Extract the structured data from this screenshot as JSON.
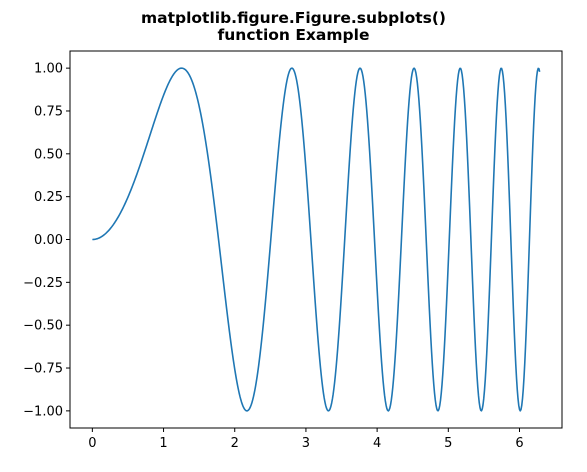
{
  "chart_data": {
    "type": "line",
    "title": [
      "matplotlib.figure.Figure.subplots()",
      "function Example"
    ],
    "xlabel": "",
    "ylabel": "",
    "function": "sin(x^2)",
    "x_range": [
      0,
      6.283
    ],
    "samples": 600,
    "xlim": [
      -0.314,
      6.597
    ],
    "ylim": [
      -1.1,
      1.1
    ],
    "x_ticks": [
      0,
      1,
      2,
      3,
      4,
      5,
      6
    ],
    "x_tick_labels": [
      "0",
      "1",
      "2",
      "3",
      "4",
      "5",
      "6"
    ],
    "y_ticks": [
      1.0,
      0.75,
      0.5,
      0.25,
      0.0,
      -0.25,
      -0.5,
      -0.75,
      -1.0
    ],
    "y_tick_labels": [
      "1.00",
      "0.75",
      "0.50",
      "0.25",
      "0.00",
      "−0.25",
      "−0.50",
      "−0.75",
      "−1.00"
    ],
    "series": [
      {
        "color": "#1f77b4"
      }
    ],
    "grid": false,
    "legend": false
  }
}
